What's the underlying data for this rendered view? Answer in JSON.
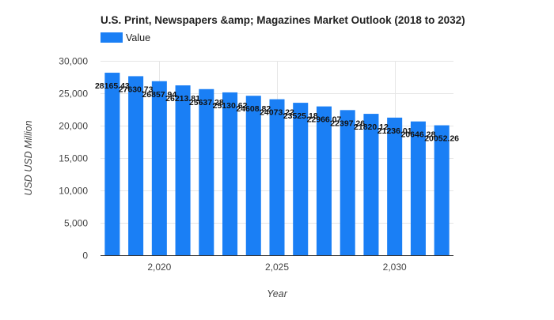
{
  "chart_data": {
    "type": "bar",
    "title": "U.S. Print, Newspapers &amp; Magazines Market Outlook (2018 to 2032)",
    "xlabel": "Year",
    "ylabel": "USD USD Million",
    "legend": {
      "entries": [
        "Value"
      ],
      "placement": "top-left"
    },
    "grid": true,
    "ylim": [
      0,
      30000
    ],
    "y_ticks": [
      0,
      5000,
      10000,
      15000,
      20000,
      25000,
      30000
    ],
    "y_tick_labels": [
      "0",
      "5,000",
      "10,000",
      "15,000",
      "20,000",
      "25,000",
      "30,000"
    ],
    "x_ticks": [
      2020,
      2025,
      2030
    ],
    "x_tick_labels": [
      "2,020",
      "2,025",
      "2,030"
    ],
    "x": [
      2018,
      2019,
      2020,
      2021,
      2022,
      2023,
      2024,
      2025,
      2026,
      2027,
      2028,
      2029,
      2030,
      2031,
      2032
    ],
    "series": [
      {
        "name": "Value",
        "color": "#1a7ff5",
        "values": [
          28165.43,
          27630.73,
          26857.94,
          26213.81,
          25637.28,
          25130.62,
          24608.82,
          24073.22,
          23525.18,
          22966.07,
          22397.26,
          21820.12,
          21236.01,
          20646.28,
          20052.26
        ],
        "labels": [
          "28165.43",
          "27630.73",
          "26857.94",
          "26213.81",
          "25637.28",
          "25130.62",
          "24608.82",
          "24073.22",
          "23525.18",
          "22966.07",
          "22397.26",
          "21820.12",
          "21236.01",
          "20646.28",
          "20052.26"
        ]
      }
    ]
  }
}
